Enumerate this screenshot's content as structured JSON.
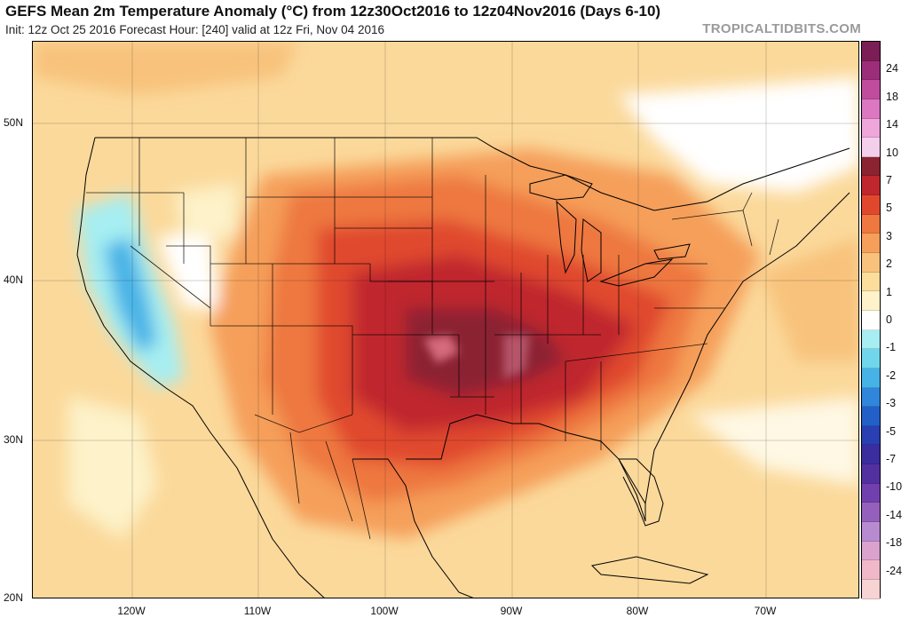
{
  "header": {
    "title": "GEFS Mean 2m Temperature Anomaly (°C) from 12z30Oct2016 to 12z04Nov2016 (Days 6-10)",
    "subtitle": "Init: 12z Oct 25 2016   Forecast Hour: [240]   valid at 12z Fri, Nov 04 2016",
    "brand": "TROPICALTIDBITS.COM"
  },
  "map": {
    "lat_labels": [
      "50N",
      "40N",
      "30N",
      "20N"
    ],
    "lon_labels": [
      "120W",
      "110W",
      "100W",
      "90W",
      "80W",
      "70W"
    ]
  },
  "colorbar": {
    "labels": [
      "24",
      "18",
      "14",
      "10",
      "7",
      "5",
      "3",
      "2",
      "1",
      "0",
      "-1",
      "-2",
      "-3",
      "-5",
      "-7",
      "-10",
      "-14",
      "-18",
      "-24"
    ],
    "colors": [
      "#7a1e55",
      "#9c2d79",
      "#c04c9e",
      "#db78c1",
      "#eea6db",
      "#f4cfec",
      "#8b2331",
      "#c0262d",
      "#e0482e",
      "#ee7840",
      "#f59f5a",
      "#f8c27c",
      "#fbdd9c",
      "#fdf2c9",
      "#ffffff",
      "#a6eef2",
      "#6fd6ec",
      "#46b2e6",
      "#2f86da",
      "#2260c8",
      "#2a3fb2",
      "#3b2ca0",
      "#5330a0",
      "#7240ae",
      "#9460bc",
      "#b88bd0",
      "#daa2cc",
      "#f0b8c8",
      "#f8d3d3"
    ]
  }
}
